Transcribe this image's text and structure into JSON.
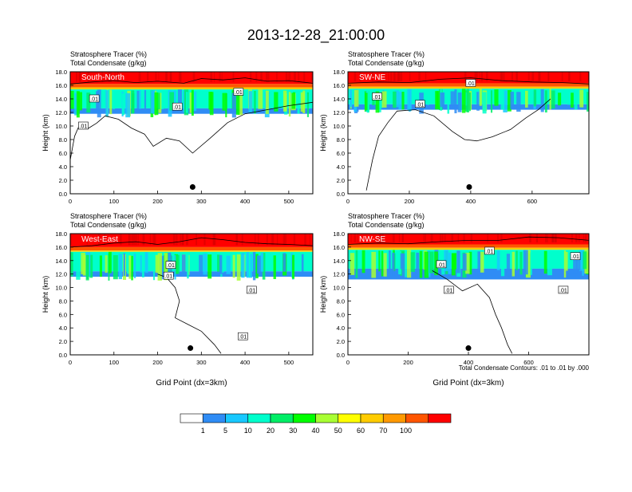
{
  "figure": {
    "title": "2013-12-28_21:00:00",
    "contour_note": "Total Condensate Contours: .01 to .01 by .000"
  },
  "colorbar": {
    "colors": [
      "#ffffff",
      "#2f8cf5",
      "#18c8ff",
      "#00ffcc",
      "#00ee66",
      "#00ff00",
      "#a8ff33",
      "#ffff00",
      "#ffcc00",
      "#ff9900",
      "#ff5500",
      "#ff0000"
    ],
    "labels": [
      "1",
      "5",
      "10",
      "20",
      "30",
      "40",
      "50",
      "60",
      "70",
      "100"
    ]
  },
  "chart_data": [
    {
      "type": "heatmap",
      "panel_label": "South-North",
      "title_line1": "Stratosphere Tracer   (%)",
      "title_line2": "Total Condensate   (g/kg)",
      "ylabel": "Height (km)",
      "xlabel": "",
      "xlim": [
        0,
        555
      ],
      "ylim": [
        0,
        18
      ],
      "xticks": [
        "0",
        "100",
        "200",
        "300",
        "400",
        "500"
      ],
      "xtick_values": [
        0,
        100,
        200,
        300,
        400,
        500
      ],
      "yticks": [
        "0.0",
        "2.0",
        "4.0",
        "6.0",
        "8.0",
        "10.0",
        "12.0",
        "14.0",
        "16.0",
        "18.0"
      ],
      "marker": {
        "x": 280,
        "y": 1.0
      },
      "band": {
        "red_bottom": 16.2,
        "cloud_top": 15.4,
        "cloud_bottom": 12.6,
        "blue_bottom": 11.8
      },
      "contour_labels": [
        {
          "text": ".01",
          "x": 55,
          "y": 14.0
        },
        {
          "text": ".01",
          "x": 245,
          "y": 12.8
        },
        {
          "text": ".01",
          "x": 385,
          "y": 15.0
        },
        {
          "text": ".01",
          "x": 30,
          "y": 10.0
        }
      ],
      "contour_top": [
        [
          0,
          16.2
        ],
        [
          50,
          16.5
        ],
        [
          100,
          16.7
        ],
        [
          150,
          16.4
        ],
        [
          200,
          16.6
        ],
        [
          260,
          16.3
        ],
        [
          300,
          17.0
        ],
        [
          350,
          16.8
        ],
        [
          400,
          17.1
        ],
        [
          450,
          16.6
        ],
        [
          500,
          16.7
        ],
        [
          555,
          16.3
        ]
      ],
      "contour_bottom": [
        [
          0,
          5.0
        ],
        [
          10,
          8.5
        ],
        [
          20,
          10.0
        ],
        [
          40,
          9.6
        ],
        [
          60,
          10.4
        ],
        [
          80,
          11.5
        ],
        [
          110,
          11.0
        ],
        [
          140,
          9.7
        ],
        [
          170,
          8.8
        ],
        [
          190,
          7.0
        ],
        [
          220,
          8.2
        ],
        [
          250,
          7.8
        ],
        [
          280,
          6.0
        ],
        [
          320,
          8.2
        ],
        [
          360,
          10.5
        ],
        [
          400,
          11.8
        ],
        [
          450,
          12.4
        ],
        [
          500,
          13.0
        ],
        [
          555,
          13.5
        ]
      ]
    },
    {
      "type": "heatmap",
      "panel_label": "SW-NE",
      "title_line1": "Stratosphere Tracer   (%)",
      "title_line2": "Total Condensate   (g/kg)",
      "ylabel": "Height (km)",
      "xlabel": "",
      "xlim": [
        0,
        785
      ],
      "ylim": [
        0,
        18
      ],
      "xticks": [
        "0",
        "200",
        "400",
        "600"
      ],
      "xtick_values": [
        0,
        200,
        400,
        600
      ],
      "yticks": [
        "0.0",
        "2.0",
        "4.0",
        "6.0",
        "8.0",
        "10.0",
        "12.0",
        "14.0",
        "16.0",
        "18.0"
      ],
      "marker": {
        "x": 395,
        "y": 1.0
      },
      "band": {
        "red_bottom": 16.3,
        "cloud_top": 15.5,
        "cloud_bottom": 13.2,
        "blue_bottom": 12.4
      },
      "contour_labels": [
        {
          "text": ".01",
          "x": 95,
          "y": 14.3
        },
        {
          "text": ".01",
          "x": 235,
          "y": 13.2
        },
        {
          "text": ".01",
          "x": 400,
          "y": 16.3
        }
      ],
      "contour_top": [
        [
          0,
          16.3
        ],
        [
          100,
          16.5
        ],
        [
          200,
          16.4
        ],
        [
          300,
          16.9
        ],
        [
          400,
          17.1
        ],
        [
          500,
          16.7
        ],
        [
          600,
          16.5
        ],
        [
          700,
          16.4
        ],
        [
          785,
          16.2
        ]
      ],
      "contour_bottom": [
        [
          60,
          0.5
        ],
        [
          80,
          5.0
        ],
        [
          100,
          8.5
        ],
        [
          130,
          10.5
        ],
        [
          160,
          12.2
        ],
        [
          220,
          12.4
        ],
        [
          280,
          11.5
        ],
        [
          340,
          9.2
        ],
        [
          380,
          8.0
        ],
        [
          420,
          7.8
        ],
        [
          470,
          8.4
        ],
        [
          530,
          9.5
        ],
        [
          580,
          11.2
        ],
        [
          620,
          12.4
        ],
        [
          660,
          14.0
        ]
      ]
    },
    {
      "type": "heatmap",
      "panel_label": "West-East",
      "title_line1": "Stratosphere Tracer   (%)",
      "title_line2": "Total Condensate   (g/kg)",
      "ylabel": "Height (km)",
      "xlabel": "Grid Point (dx=3km)",
      "xlim": [
        0,
        555
      ],
      "ylim": [
        0,
        18
      ],
      "xticks": [
        "0",
        "100",
        "200",
        "300",
        "400",
        "500"
      ],
      "xtick_values": [
        0,
        100,
        200,
        300,
        400,
        500
      ],
      "yticks": [
        "0.0",
        "2.0",
        "4.0",
        "6.0",
        "8.0",
        "10.0",
        "12.0",
        "14.0",
        "16.0",
        "18.0"
      ],
      "marker": {
        "x": 275,
        "y": 1.0
      },
      "band": {
        "red_bottom": 16.0,
        "cloud_top": 15.3,
        "cloud_bottom": 12.4,
        "blue_bottom": 11.6
      },
      "contour_labels": [
        {
          "text": ".01",
          "x": 230,
          "y": 13.3
        },
        {
          "text": ".01",
          "x": 225,
          "y": 11.7
        },
        {
          "text": ".01",
          "x": 415,
          "y": 9.6
        },
        {
          "text": ".01",
          "x": 395,
          "y": 2.7
        }
      ],
      "contour_top": [
        [
          0,
          16.0
        ],
        [
          50,
          16.2
        ],
        [
          100,
          16.6
        ],
        [
          150,
          16.8
        ],
        [
          200,
          16.4
        ],
        [
          250,
          16.8
        ],
        [
          300,
          17.4
        ],
        [
          350,
          17.1
        ],
        [
          400,
          16.7
        ],
        [
          450,
          16.5
        ],
        [
          500,
          16.4
        ],
        [
          555,
          16.2
        ]
      ],
      "contour_bottom": [
        [
          200,
          12.0
        ],
        [
          220,
          11.5
        ],
        [
          240,
          10.0
        ],
        [
          250,
          8.0
        ],
        [
          240,
          5.5
        ],
        [
          270,
          4.5
        ],
        [
          300,
          3.5
        ],
        [
          330,
          1.5
        ],
        [
          345,
          0.2
        ]
      ]
    },
    {
      "type": "heatmap",
      "panel_label": "NW-SE",
      "title_line1": "Stratosphere Tracer   (%)",
      "title_line2": "Total Condensate   (g/kg)",
      "ylabel": "Height (km)",
      "xlabel": "Grid Point (dx=3km)",
      "xlim": [
        0,
        800
      ],
      "ylim": [
        0,
        18
      ],
      "xticks": [
        "0",
        "200",
        "400",
        "600"
      ],
      "xtick_values": [
        0,
        200,
        400,
        600
      ],
      "yticks": [
        "0.0",
        "2.0",
        "4.0",
        "6.0",
        "8.0",
        "10.0",
        "12.0",
        "14.0",
        "16.0",
        "18.0"
      ],
      "marker": {
        "x": 400,
        "y": 1.0
      },
      "band": {
        "red_bottom": 16.4,
        "cloud_top": 15.6,
        "cloud_bottom": 12.8,
        "blue_bottom": 11.2
      },
      "contour_labels": [
        {
          "text": ".01",
          "x": 310,
          "y": 13.4
        },
        {
          "text": ".01",
          "x": 470,
          "y": 15.4
        },
        {
          "text": ".01",
          "x": 335,
          "y": 9.6
        },
        {
          "text": ".01",
          "x": 715,
          "y": 9.6
        },
        {
          "text": ".01",
          "x": 755,
          "y": 14.6
        }
      ],
      "contour_top": [
        [
          0,
          16.4
        ],
        [
          100,
          16.6
        ],
        [
          200,
          16.5
        ],
        [
          300,
          16.8
        ],
        [
          400,
          17.0
        ],
        [
          500,
          17.0
        ],
        [
          600,
          17.5
        ],
        [
          700,
          17.4
        ],
        [
          800,
          17.0
        ]
      ],
      "contour_bottom": [
        [
          280,
          12.5
        ],
        [
          330,
          11.2
        ],
        [
          380,
          9.5
        ],
        [
          430,
          10.5
        ],
        [
          470,
          8.5
        ],
        [
          490,
          6.0
        ],
        [
          510,
          4.0
        ],
        [
          530,
          1.5
        ],
        [
          545,
          0.2
        ]
      ]
    }
  ]
}
